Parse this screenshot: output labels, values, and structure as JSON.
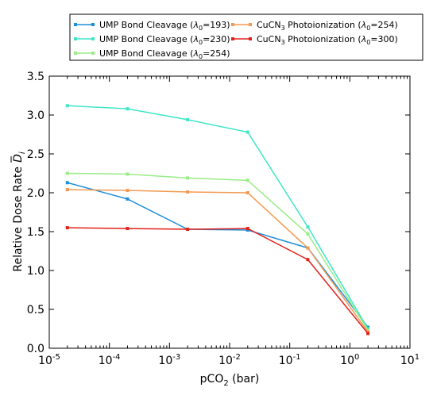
{
  "chart_data": {
    "type": "line",
    "title": "",
    "xlabel": "pCO",
    "xlabel_sub": "2",
    "xlabel_unit": " (bar)",
    "ylabel": "Relative Dose Rate",
    "ylabel_symbol": "D",
    "ylabel_sub": "i",
    "x_scale": "log",
    "xlim": [
      1e-05,
      10
    ],
    "ylim": [
      0.0,
      3.5
    ],
    "grid": false,
    "legend_position": "top",
    "x_tick_labels": [
      {
        "base": "10",
        "exp": "-5"
      },
      {
        "base": "10",
        "exp": "-4"
      },
      {
        "base": "10",
        "exp": "-3"
      },
      {
        "base": "10",
        "exp": "-2"
      },
      {
        "base": "10",
        "exp": "-1"
      },
      {
        "base": "10",
        "exp": "0"
      },
      {
        "base": "10",
        "exp": "1"
      }
    ],
    "y_tick_labels": [
      "0.0",
      "0.5",
      "1.0",
      "1.5",
      "2.0",
      "2.5",
      "3.0",
      "3.5"
    ],
    "x": [
      2e-05,
      0.0002,
      0.002,
      0.02,
      0.2,
      2
    ],
    "series": [
      {
        "name": "UMP Bond Cleavage",
        "lambda": "193",
        "color": "#1f8fd6",
        "values": [
          2.13,
          1.92,
          1.53,
          1.52,
          1.29,
          0.27
        ]
      },
      {
        "name": "UMP Bond Cleavage",
        "lambda": "230",
        "color": "#3ee6c7",
        "values": [
          3.12,
          3.08,
          2.94,
          2.78,
          1.56,
          0.25
        ]
      },
      {
        "name": "UMP Bond Cleavage",
        "lambda": "254",
        "color": "#99ec86",
        "values": [
          2.25,
          2.24,
          2.19,
          2.16,
          1.47,
          0.23
        ]
      },
      {
        "name": "CuCN",
        "name_sub": "3",
        "name_rest": " Photoionization",
        "lambda": "254",
        "color": "#f39a52",
        "values": [
          2.04,
          2.03,
          2.01,
          2.0,
          1.29,
          0.21
        ]
      },
      {
        "name": "CuCN",
        "name_sub": "3",
        "name_rest": " Photoionization",
        "lambda": "300",
        "color": "#e2211a",
        "values": [
          1.55,
          1.54,
          1.53,
          1.54,
          1.14,
          0.19
        ]
      }
    ]
  }
}
